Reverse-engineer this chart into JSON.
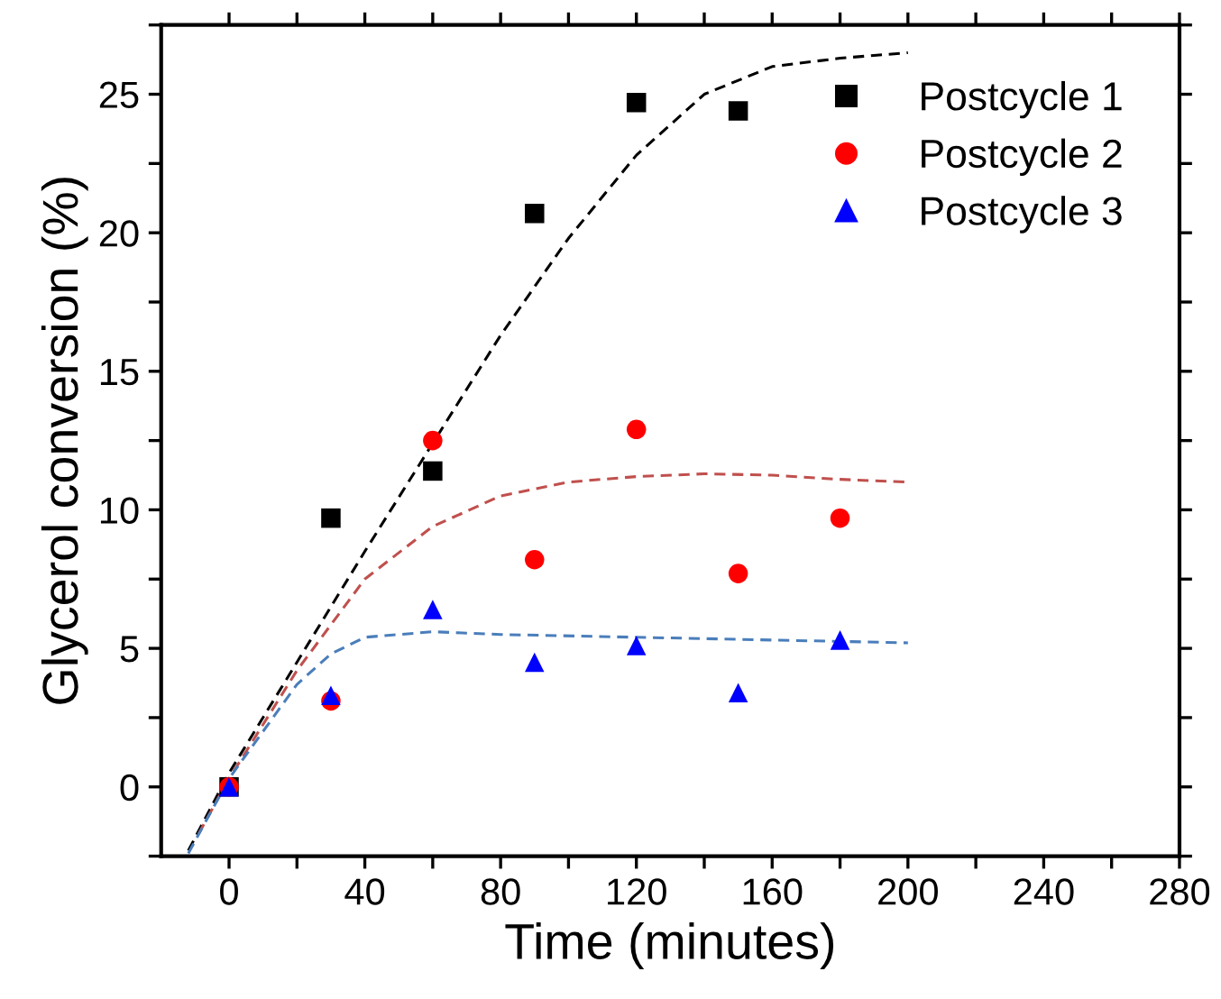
{
  "chart_data": {
    "type": "scatter",
    "xlabel": "Time (minutes)",
    "ylabel": "Glycerol conversion (%)",
    "xlim": [
      -20,
      280
    ],
    "ylim": [
      -2.5,
      27.5
    ],
    "xticks": [
      0,
      {
        "value": 20,
        "label": null
      },
      40,
      {
        "value": 60,
        "label": null
      },
      80,
      {
        "value": 100,
        "label": null
      },
      120,
      {
        "value": 140,
        "label": null
      },
      160,
      {
        "value": 180,
        "label": null
      },
      200,
      {
        "value": 220,
        "label": null
      },
      240,
      {
        "value": 260,
        "label": null
      },
      280
    ],
    "yticks": [
      {
        "value": -2.5,
        "label": null
      },
      0,
      {
        "value": 2.5,
        "label": null
      },
      5,
      {
        "value": 7.5,
        "label": null
      },
      10,
      {
        "value": 12.5,
        "label": null
      },
      15,
      {
        "value": 17.5,
        "label": null
      },
      20,
      {
        "value": 22.5,
        "label": null
      },
      25,
      {
        "value": 27.5,
        "label": null
      }
    ],
    "grid": false,
    "legend": "top right",
    "series": [
      {
        "name": "Postcycle 1",
        "color": "#000000",
        "marker": "square",
        "x": [
          0,
          30,
          60,
          90,
          120,
          150
        ],
        "values": [
          0,
          9.7,
          11.4,
          20.7,
          24.7,
          24.4
        ]
      },
      {
        "name": "Postcycle 2",
        "color": "#ff0000",
        "marker": "circle",
        "x": [
          0,
          30,
          60,
          90,
          120,
          150,
          180
        ],
        "values": [
          0,
          3.1,
          12.5,
          8.2,
          12.9,
          7.7,
          9.7
        ]
      },
      {
        "name": "Postcycle 3",
        "color": "#0000ff",
        "marker": "triangle",
        "x": [
          0,
          30,
          60,
          90,
          120,
          150,
          180
        ],
        "values": [
          0,
          3.3,
          6.4,
          4.5,
          5.1,
          3.4,
          5.3
        ]
      },
      {
        "type": "line",
        "line_style": "dashed",
        "marker": "none",
        "color": "#000000",
        "x": [
          -12,
          0,
          20,
          40,
          60,
          80,
          100,
          120,
          140,
          160,
          180,
          200
        ],
        "values": [
          -2.3,
          0.5,
          4.5,
          8.5,
          12.4,
          16.3,
          19.8,
          22.8,
          25.0,
          26.0,
          26.3,
          26.5
        ]
      },
      {
        "type": "line",
        "line_style": "dashed",
        "marker": "none",
        "color": "#c0504d",
        "x": [
          -9,
          0,
          20,
          40,
          60,
          80,
          100,
          120,
          140,
          160,
          180,
          200
        ],
        "values": [
          -1.7,
          0.3,
          4.2,
          7.5,
          9.4,
          10.5,
          11.0,
          11.2,
          11.3,
          11.25,
          11.1,
          11.0
        ]
      },
      {
        "type": "line",
        "line_style": "dashed",
        "marker": "none",
        "color": "#4a7ebb",
        "x": [
          -12,
          0,
          20,
          30,
          40,
          60,
          80,
          120,
          160,
          200
        ],
        "values": [
          -2.4,
          0.3,
          3.7,
          4.8,
          5.4,
          5.6,
          5.5,
          5.4,
          5.3,
          5.2
        ]
      }
    ]
  }
}
